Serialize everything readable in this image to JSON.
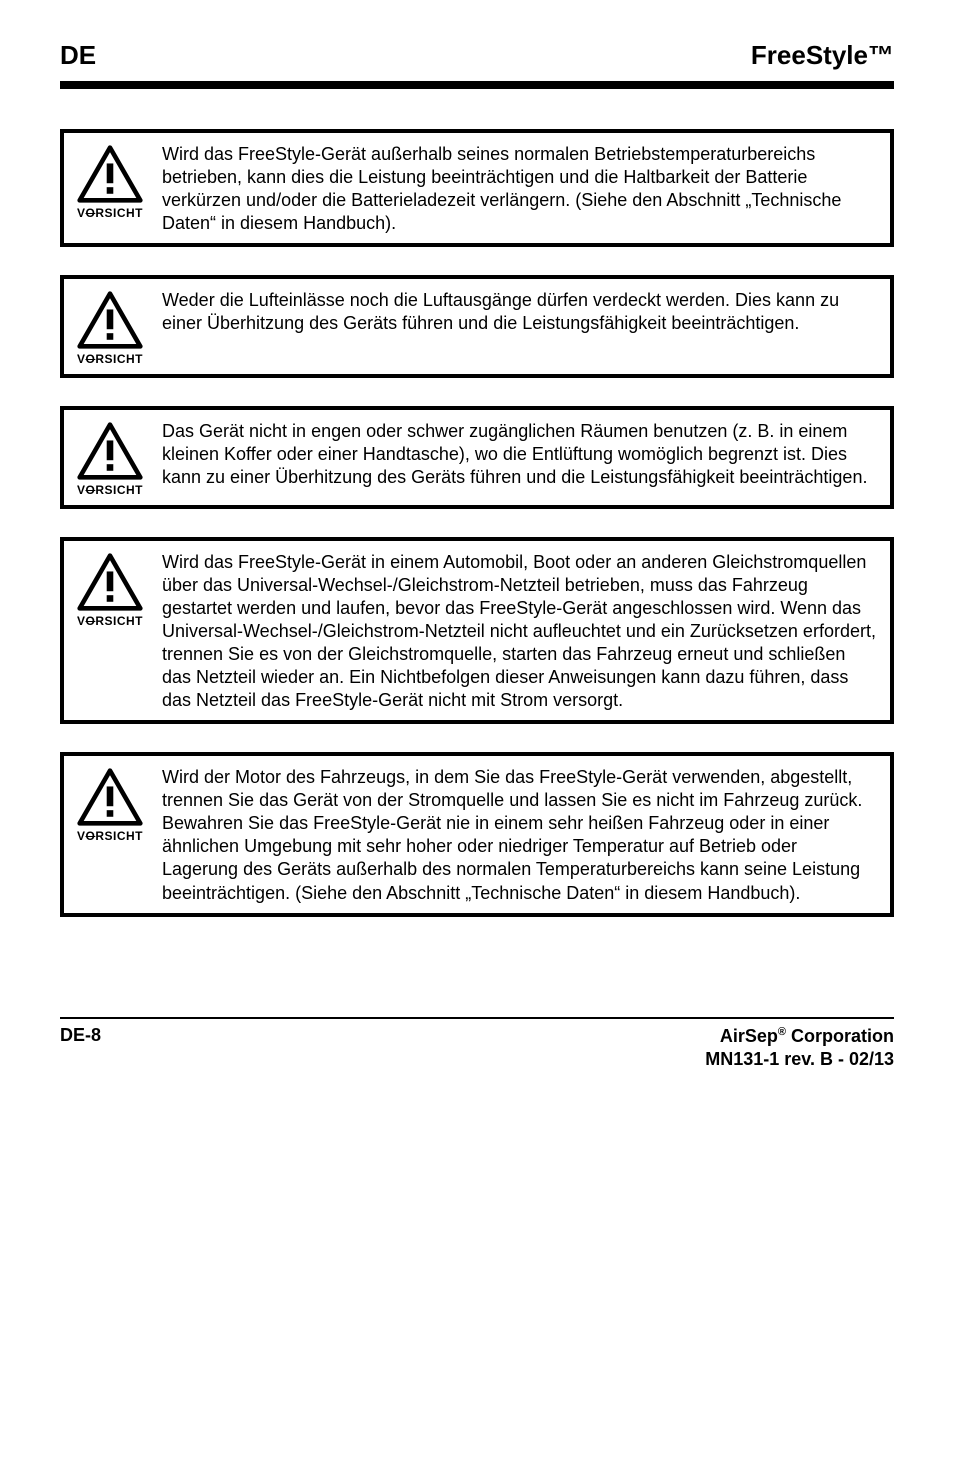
{
  "header": {
    "left": "DE",
    "right": "FreeStyle™"
  },
  "icon": {
    "label_prefix": "V",
    "label_strike": "O",
    "label_suffix": "RSICHT"
  },
  "boxes": [
    {
      "text": "Wird das FreeStyle-Gerät außerhalb seines normalen Betriebstemperaturbereichs betrieben, kann dies die Leistung beeinträchtigen und die Haltbarkeit der Batterie verkürzen und/oder die Batterieladezeit verlängern. (Siehe den Abschnitt „Technische Daten“ in diesem Handbuch)."
    },
    {
      "text": "Weder die Lufteinlässe noch die Luftausgänge dürfen verdeckt werden. Dies kann zu einer Überhitzung des Geräts führen und die Leistungsfähigkeit beeinträchtigen."
    },
    {
      "text": "Das Gerät nicht in engen oder schwer zugänglichen Räumen benutzen (z. B. in einem kleinen Koffer oder einer Handtasche), wo die Entlüftung womöglich begrenzt ist. Dies kann zu einer Überhitzung des Geräts führen und die Leistungsfähigkeit beeinträchtigen."
    },
    {
      "text": "Wird das FreeStyle-Gerät in einem Automobil, Boot oder an anderen Gleichstromquellen über das Universal-Wechsel-/Gleichstrom-Netzteil betrieben, muss das Fahrzeug gestartet werden und laufen, bevor das FreeStyle-Gerät angeschlossen wird. Wenn das Universal-Wechsel-/Gleichstrom-Netzteil nicht aufleuchtet und ein Zurücksetzen erfordert, trennen Sie es von der Gleichstromquelle, starten das Fahrzeug erneut und schließen das Netzteil wieder an. Ein Nichtbefolgen dieser Anweisungen kann dazu führen, dass das Netzteil das FreeStyle-Gerät nicht mit Strom versorgt."
    },
    {
      "text": "Wird der Motor des Fahrzeugs, in dem Sie das FreeStyle-Gerät verwenden, abgestellt, trennen Sie das Gerät von der Stromquelle und lassen Sie es nicht im Fahrzeug zurück. Bewahren Sie das FreeStyle-Gerät nie in einem sehr heißen Fahrzeug oder in einer ähnlichen Umgebung mit sehr hoher oder niedriger Temperatur auf Betrieb oder Lagerung des Geräts außerhalb des normalen Temperaturbereichs kann seine Leistung beeinträchtigen. (Siehe den Abschnitt „Technische Daten“ in diesem Handbuch)."
    }
  ],
  "footer": {
    "left": "DE-8",
    "right_line1_a": "AirSep",
    "right_line1_sup": "®",
    "right_line1_b": " Corporation",
    "right_line2": "MN131-1 rev. B - 02/13"
  }
}
